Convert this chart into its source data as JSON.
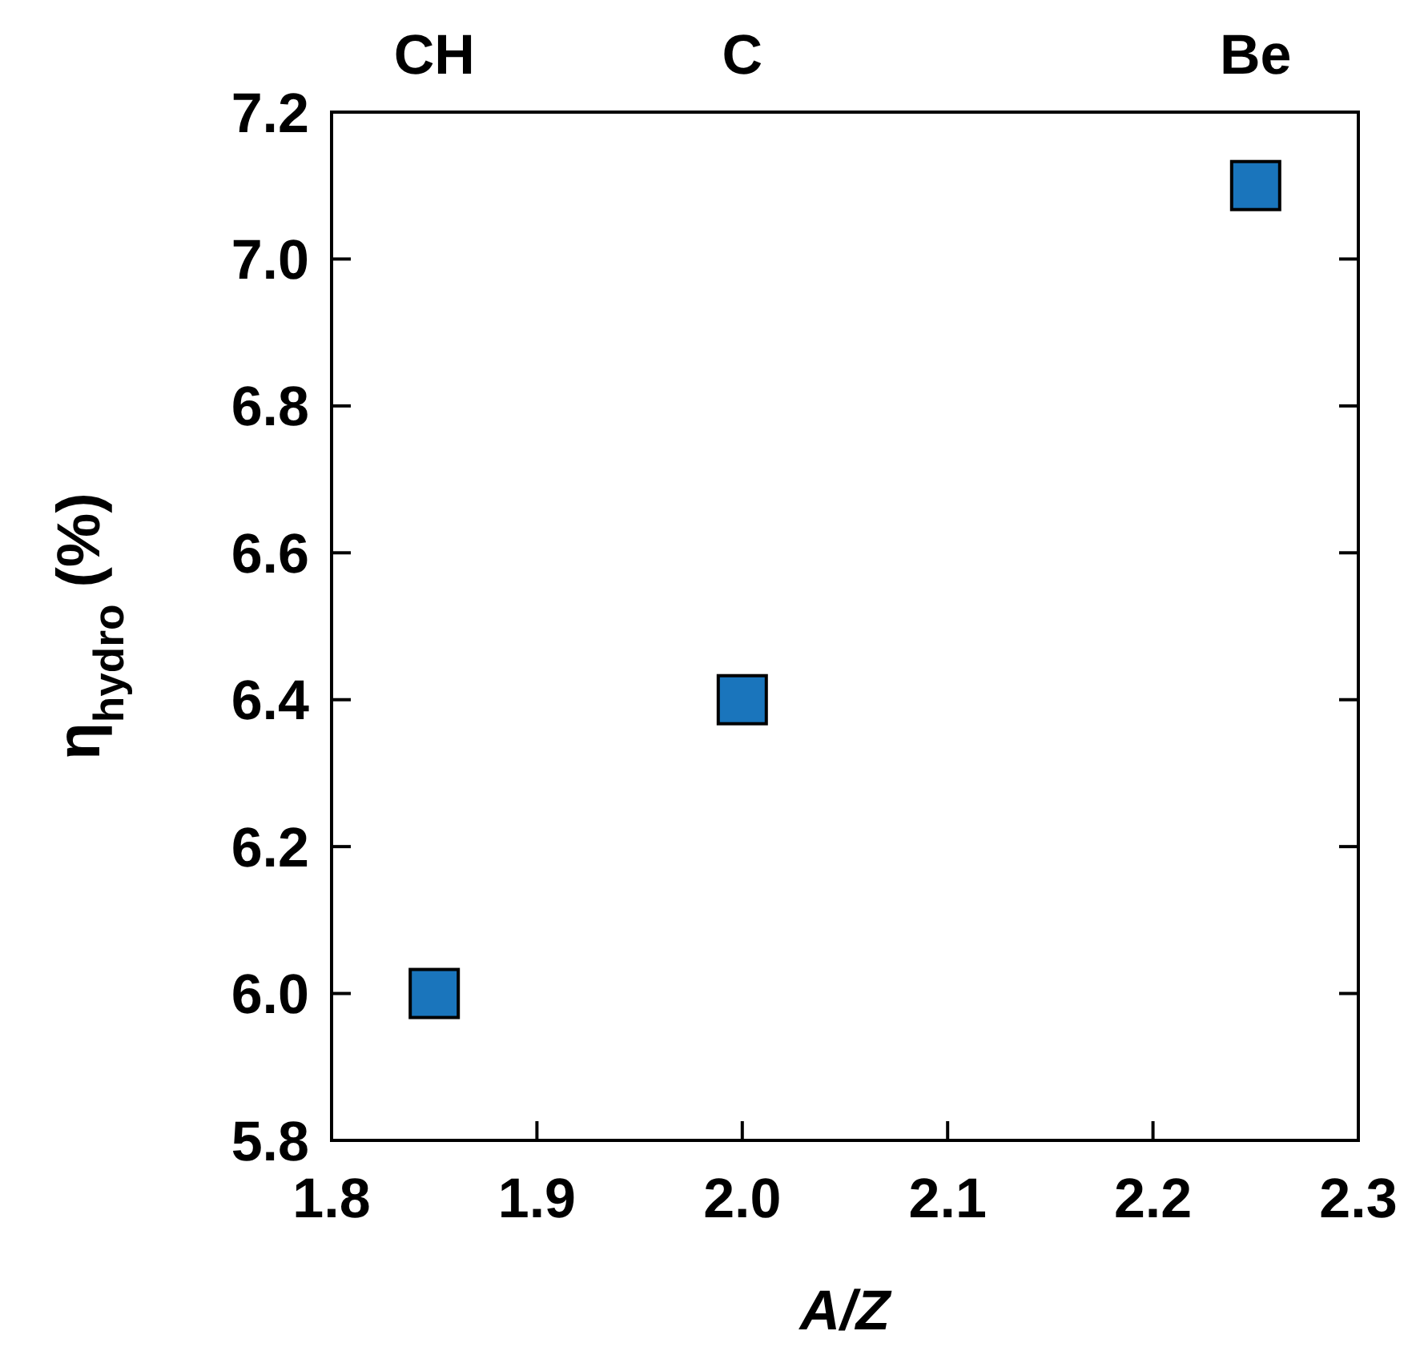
{
  "chart_data": {
    "type": "scatter",
    "xlabel": "A/Z",
    "ylabel": "η$_{hydro}$ (%)",
    "x": [
      1.85,
      2.0,
      2.25
    ],
    "values": [
      6.0,
      6.4,
      7.1
    ],
    "color": "#1a75bc",
    "marker": "square",
    "xlim": [
      1.8,
      2.3
    ],
    "xticks": [
      1.8,
      1.9,
      {
        "value": 2.0,
        "label": "2.0"
      },
      2.1,
      2.2,
      2.3
    ],
    "ylim": [
      5.8,
      7.2
    ],
    "yticks": [
      5.8,
      {
        "value": 6.0,
        "label": "6.0"
      },
      6.2,
      6.4,
      6.6,
      6.8,
      {
        "value": 7.0,
        "label": "7.0"
      },
      7.2
    ],
    "annotations": [
      "CH",
      "C",
      "Be"
    ],
    "grid": false
  }
}
